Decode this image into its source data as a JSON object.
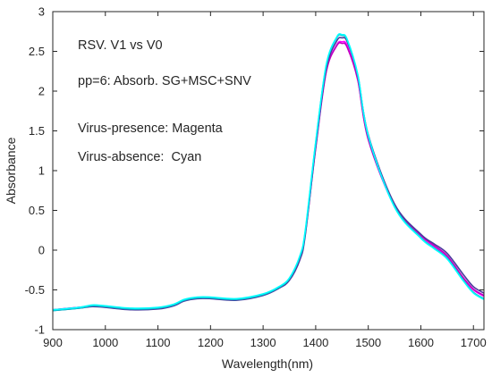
{
  "chart_data": {
    "type": "line",
    "xlabel": "Wavelength(nm)",
    "ylabel": "Absorbance",
    "xlim": [
      900,
      1720
    ],
    "ylim": [
      -1,
      3
    ],
    "xticks": [
      900,
      1000,
      1100,
      1200,
      1300,
      1400,
      1500,
      1600,
      1700
    ],
    "xtick_labels": [
      "900",
      "1000",
      "1100",
      "1200",
      "1300",
      "1400",
      "1500",
      "1600",
      "1700"
    ],
    "yticks": [
      -1,
      -0.5,
      0,
      0.5,
      1,
      1.5,
      2,
      2.5,
      3
    ],
    "ytick_labels": [
      "-1",
      "-0.5",
      "0",
      "0.5",
      "1",
      "1.5",
      "2",
      "2.5",
      "3"
    ],
    "grid": false,
    "annotations": [
      "RSV. V1 vs V0",
      "pp=6: Absorb. SG+MSC+SNV",
      "Virus-presence: Magenta",
      "Virus-absence:  Cyan"
    ],
    "x": [
      900,
      950,
      975,
      1000,
      1050,
      1100,
      1130,
      1150,
      1175,
      1200,
      1250,
      1300,
      1330,
      1350,
      1370,
      1380,
      1400,
      1420,
      1440,
      1450,
      1460,
      1480,
      1500,
      1550,
      1600,
      1625,
      1650,
      1680,
      1700,
      1720
    ],
    "series": [
      {
        "color": "#ff00ff",
        "values": [
          -0.75,
          -0.72,
          -0.7,
          -0.71,
          -0.74,
          -0.73,
          -0.69,
          -0.63,
          -0.6,
          -0.6,
          -0.62,
          -0.56,
          -0.47,
          -0.37,
          -0.1,
          0.2,
          1.3,
          2.25,
          2.58,
          2.62,
          2.57,
          2.15,
          1.4,
          0.55,
          0.18,
          0.05,
          -0.08,
          -0.35,
          -0.5,
          -0.58
        ]
      },
      {
        "color": "#c000c0",
        "values": [
          -0.75,
          -0.72,
          -0.7,
          -0.71,
          -0.74,
          -0.73,
          -0.69,
          -0.63,
          -0.6,
          -0.6,
          -0.62,
          -0.56,
          -0.47,
          -0.37,
          -0.1,
          0.2,
          1.28,
          2.24,
          2.57,
          2.6,
          2.55,
          2.14,
          1.39,
          0.56,
          0.19,
          0.06,
          -0.07,
          -0.34,
          -0.49,
          -0.57
        ]
      },
      {
        "color": "#4b3a9e",
        "values": [
          -0.76,
          -0.73,
          -0.71,
          -0.72,
          -0.75,
          -0.74,
          -0.7,
          -0.64,
          -0.61,
          -0.61,
          -0.63,
          -0.57,
          -0.48,
          -0.38,
          -0.12,
          0.18,
          1.3,
          2.28,
          2.63,
          2.67,
          2.62,
          2.2,
          1.45,
          0.58,
          0.2,
          0.08,
          -0.04,
          -0.3,
          -0.46,
          -0.54
        ]
      },
      {
        "color": "#00b4c8",
        "values": [
          -0.76,
          -0.73,
          -0.7,
          -0.71,
          -0.74,
          -0.73,
          -0.69,
          -0.63,
          -0.6,
          -0.6,
          -0.62,
          -0.56,
          -0.47,
          -0.36,
          -0.08,
          0.22,
          1.35,
          2.32,
          2.67,
          2.7,
          2.64,
          2.2,
          1.43,
          0.55,
          0.16,
          0.03,
          -0.1,
          -0.37,
          -0.53,
          -0.61
        ]
      },
      {
        "color": "#00ffff",
        "values": [
          -0.75,
          -0.72,
          -0.69,
          -0.7,
          -0.73,
          -0.72,
          -0.68,
          -0.62,
          -0.59,
          -0.59,
          -0.61,
          -0.55,
          -0.46,
          -0.35,
          -0.07,
          0.24,
          1.36,
          2.33,
          2.68,
          2.71,
          2.65,
          2.21,
          1.44,
          0.54,
          0.15,
          0.02,
          -0.11,
          -0.38,
          -0.54,
          -0.62
        ]
      }
    ]
  }
}
